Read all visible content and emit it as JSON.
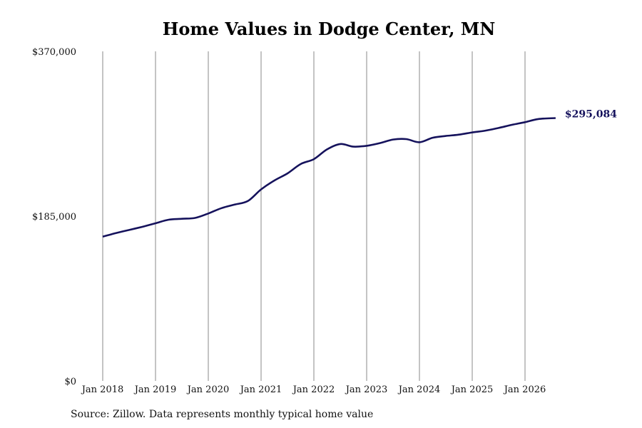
{
  "chart_data": {
    "type": "line",
    "title": "Home Values in Dodge Center, MN",
    "xlabel": "",
    "ylabel": "",
    "ylim": [
      0,
      370000
    ],
    "y_ticks": [
      {
        "value": 0,
        "label": "$0"
      },
      {
        "value": 185000,
        "label": "$185,000"
      },
      {
        "value": 370000,
        "label": "$370,000"
      }
    ],
    "x_ticks": [
      {
        "value": 2018.0,
        "label": "Jan 2018"
      },
      {
        "value": 2019.0,
        "label": "Jan 2019"
      },
      {
        "value": 2020.0,
        "label": "Jan 2020"
      },
      {
        "value": 2021.0,
        "label": "Jan 2021"
      },
      {
        "value": 2022.0,
        "label": "Jan 2022"
      },
      {
        "value": 2023.0,
        "label": "Jan 2023"
      },
      {
        "value": 2024.0,
        "label": "Jan 2024"
      },
      {
        "value": 2025.0,
        "label": "Jan 2025"
      },
      {
        "value": 2026.0,
        "label": "Jan 2026"
      }
    ],
    "grid": "vertical",
    "series": [
      {
        "color": "#15125c",
        "x": [
          2018.0,
          2018.25,
          2018.5,
          2018.75,
          2019.0,
          2019.25,
          2019.5,
          2019.75,
          2020.0,
          2020.25,
          2020.5,
          2020.75,
          2021.0,
          2021.25,
          2021.5,
          2021.75,
          2022.0,
          2022.25,
          2022.5,
          2022.75,
          2023.0,
          2023.25,
          2023.5,
          2023.75,
          2024.0,
          2024.25,
          2024.5,
          2024.75,
          2025.0,
          2025.25,
          2025.5,
          2025.75,
          2026.0,
          2026.25,
          2026.58
        ],
        "values": [
          162000,
          166000,
          169500,
          173000,
          177000,
          181000,
          182000,
          183000,
          188000,
          194000,
          198000,
          202000,
          215000,
          225000,
          233000,
          243500,
          249000,
          260000,
          266000,
          263000,
          264000,
          267000,
          271000,
          271500,
          268000,
          273000,
          275000,
          276500,
          279000,
          281000,
          284000,
          287500,
          290500,
          294000,
          295084
        ]
      }
    ],
    "end_label": "$295,084"
  },
  "footer": {
    "source": "Source: Zillow. Data represents monthly typical home value"
  }
}
